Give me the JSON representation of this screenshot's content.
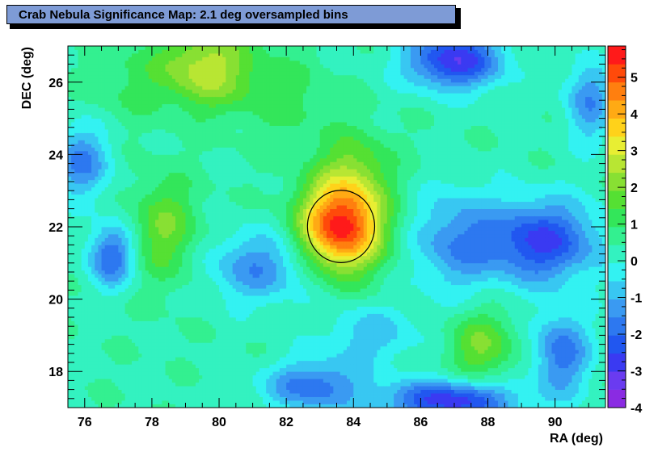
{
  "chart_data": {
    "type": "heatmap",
    "title": "Crab Nebula Significance Map: 2.1 deg oversampled bins",
    "xlabel": "RA (deg)",
    "ylabel": "DEC (deg)",
    "xlim": [
      75.5,
      91.5
    ],
    "ylim": [
      17.0,
      27.0
    ],
    "x_ticks": [
      76,
      78,
      80,
      82,
      84,
      86,
      88,
      90
    ],
    "y_ticks": [
      18,
      20,
      22,
      24,
      26
    ],
    "z_range": [
      -4,
      5.85
    ],
    "z_ticks": [
      -4,
      -3,
      -2,
      -1,
      0,
      1,
      2,
      3,
      4,
      5
    ],
    "colorbar_levels": 20,
    "source_marker": {
      "shape": "circle",
      "ra": 83.63,
      "dec": 22.01,
      "radius_deg": 1.0
    },
    "features": [
      {
        "ra": 83.63,
        "dec": 22.0,
        "peak_significance": 5.8
      },
      {
        "ra": 79.5,
        "dec": 26.5,
        "peak_significance": 3.2
      },
      {
        "ra": 87.0,
        "dec": 26.5,
        "peak_significance": -2.8
      },
      {
        "ra": 89.5,
        "dec": 21.5,
        "peak_significance": -2.7
      },
      {
        "ra": 87.5,
        "dec": 17.2,
        "peak_significance": -3.0
      },
      {
        "ra": 76.8,
        "dec": 21.2,
        "peak_significance": -2.3
      }
    ]
  }
}
